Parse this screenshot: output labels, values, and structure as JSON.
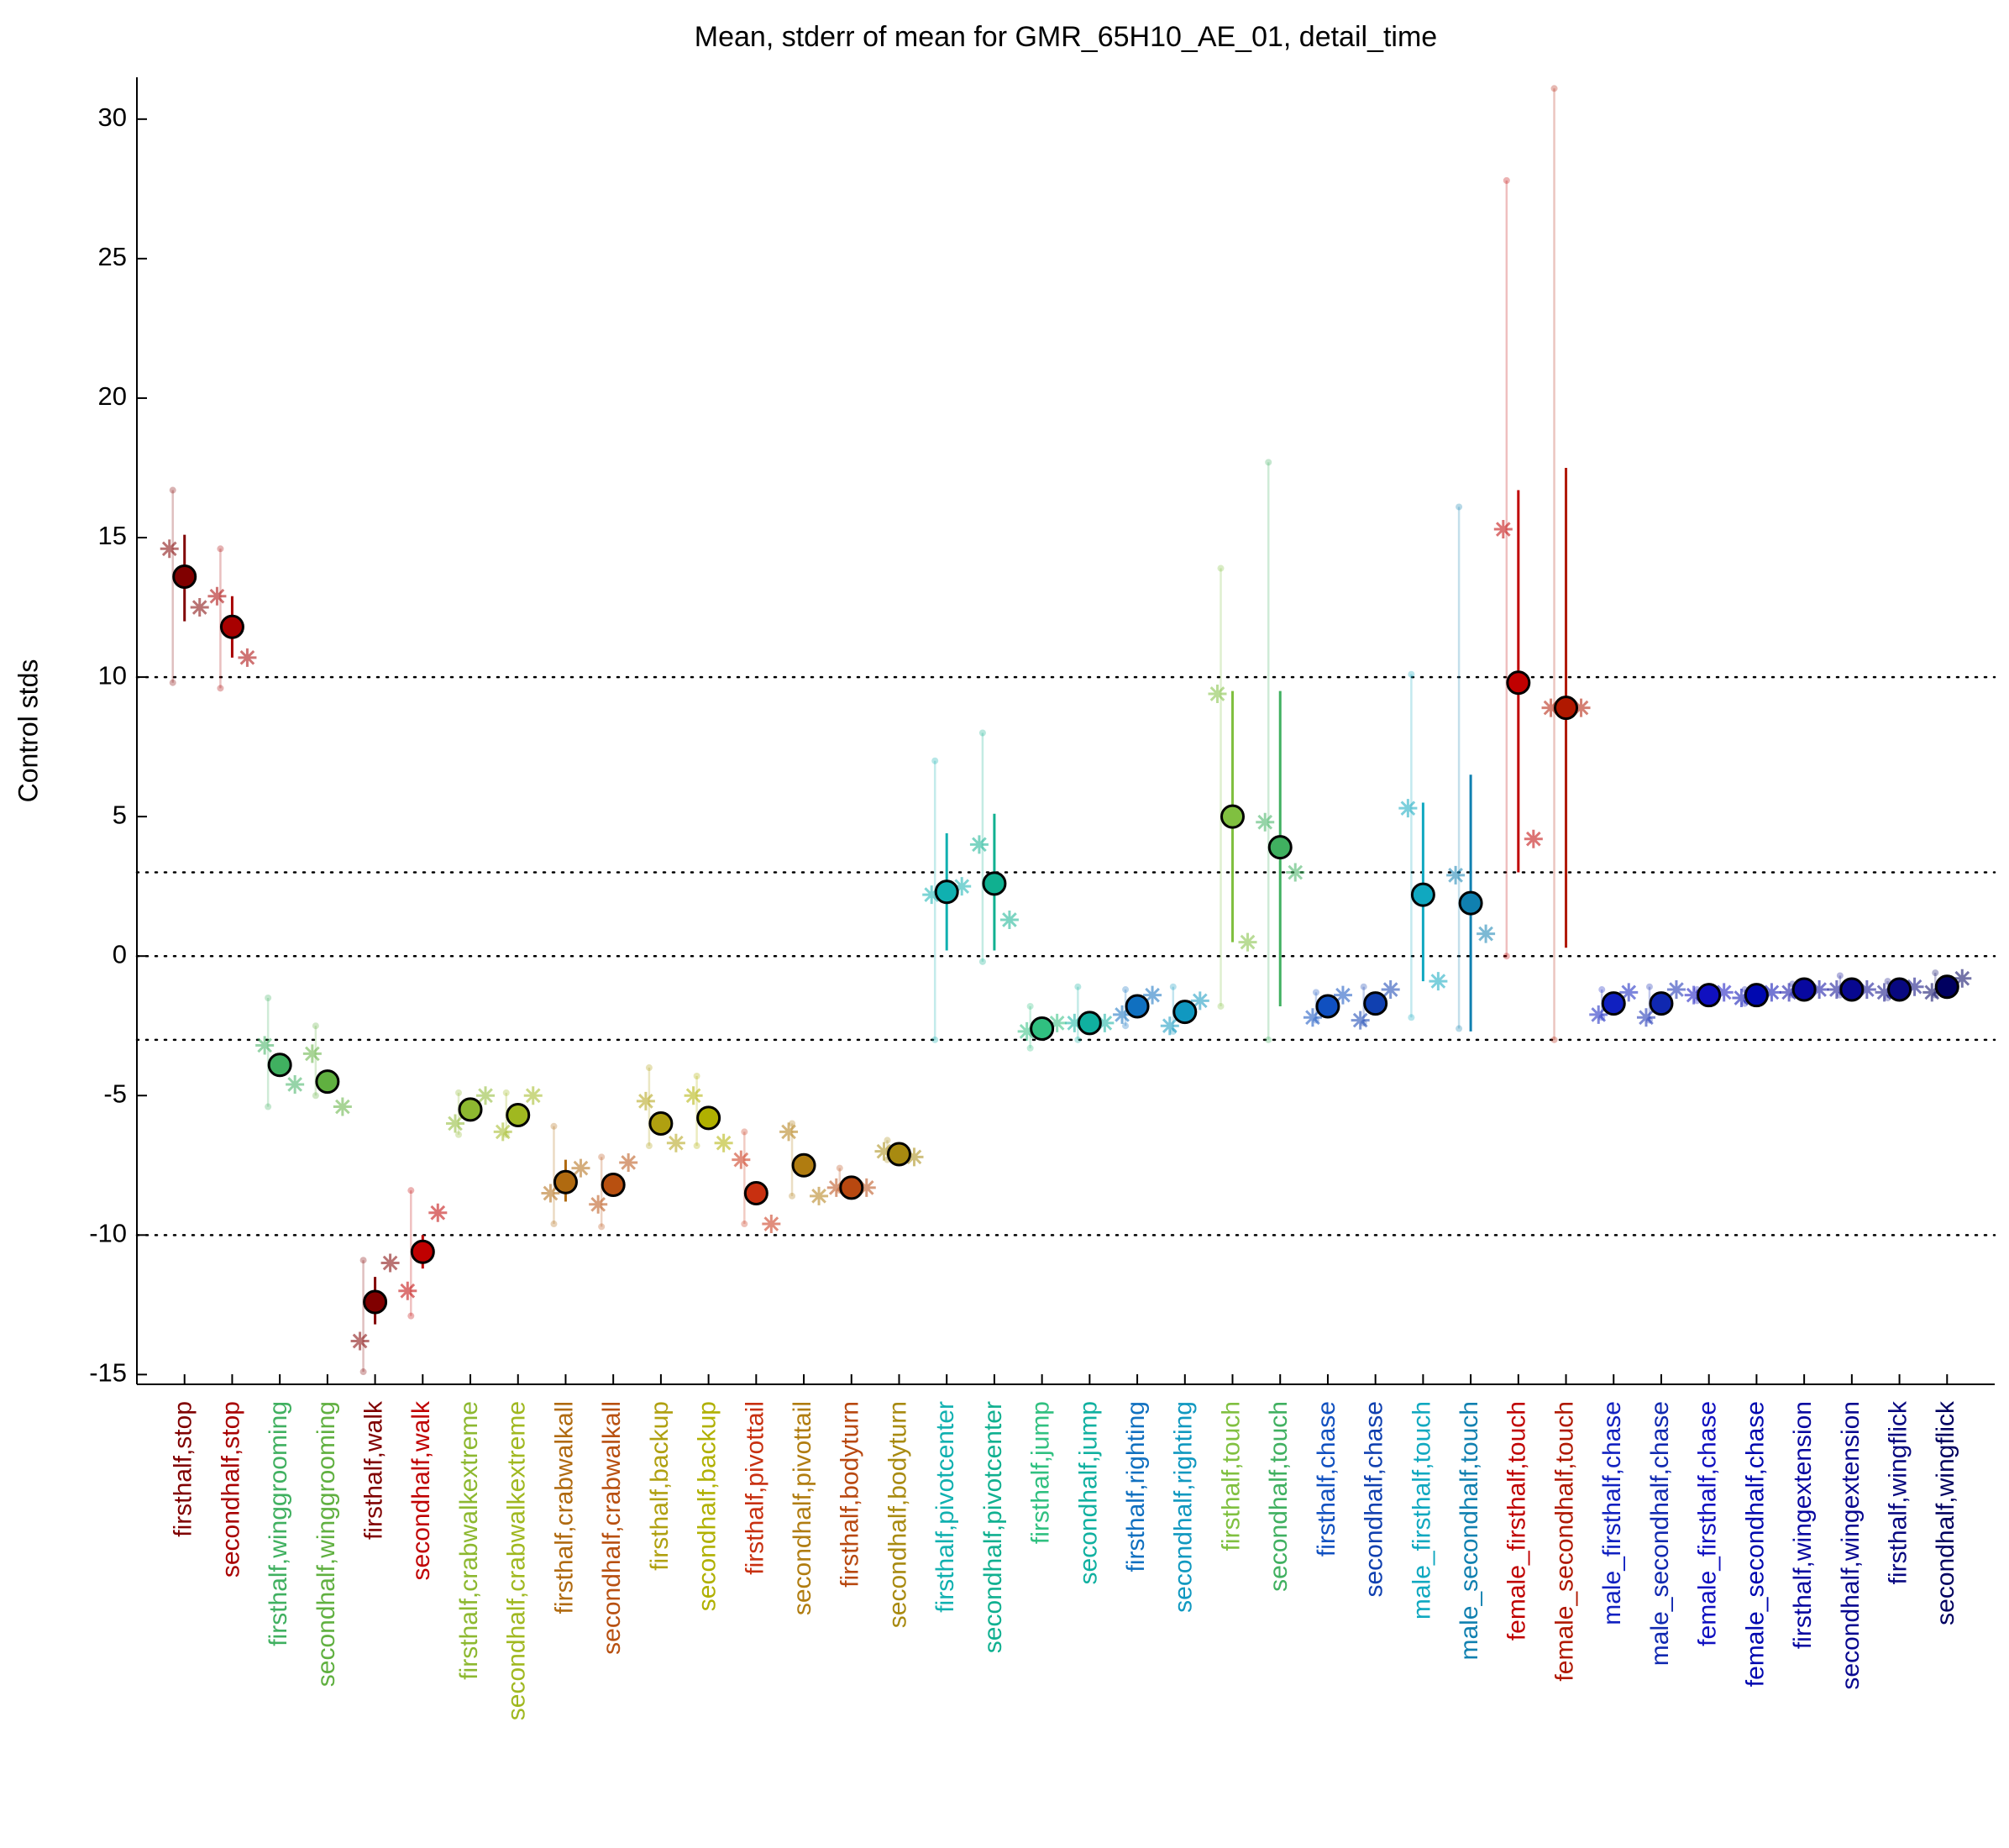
{
  "chart_data": {
    "type": "errorpoint",
    "title": "Mean, stderr of mean for GMR_65H10_AE_01, detail_time",
    "y_label": "Control stds",
    "ylim": [
      -15.35,
      31.5
    ],
    "yticks": [
      -15,
      -10,
      -5,
      0,
      5,
      10,
      15,
      20,
      25,
      30
    ],
    "hlines": [
      10,
      3,
      0,
      -3,
      -10
    ],
    "categories": [
      "firsthalf,stop",
      "secondhalf,stop",
      "firsthalf,winggrooming",
      "secondhalf,winggrooming",
      "firsthalf,walk",
      "secondhalf,walk",
      "firsthalf,crabwalkextreme",
      "secondhalf,crabwalkextreme",
      "firsthalf,crabwalkall",
      "secondhalf,crabwalkall",
      "firsthalf,backup",
      "secondhalf,backup",
      "firsthalf,pivottail",
      "secondhalf,pivottail",
      "firsthalf,bodyturn",
      "secondhalf,bodyturn",
      "firsthalf,pivotcenter",
      "secondhalf,pivotcenter",
      "firsthalf,jump",
      "secondhalf,jump",
      "firsthalf,righting",
      "secondhalf,righting",
      "firsthalf,touch",
      "secondhalf,touch",
      "firsthalf,chase",
      "secondhalf,chase",
      "male_firsthalf,touch",
      "male_secondhalf,touch",
      "female_firsthalf,touch",
      "female_secondhalf,touch",
      "male_firsthalf,chase",
      "male_secondhalf,chase",
      "female_firsthalf,chase",
      "female_secondhalf,chase",
      "firsthalf,wingextension",
      "secondhalf,wingextension",
      "firsthalf,wingflick",
      "secondhalf,wingflick"
    ],
    "colors": [
      "#800000",
      "#a80000",
      "#40b060",
      "#60b040",
      "#800000",
      "#c00000",
      "#8db830",
      "#a0b820",
      "#b06a10",
      "#b85010",
      "#b0a010",
      "#b0b000",
      "#c83010",
      "#b07c10",
      "#b84810",
      "#a88a10",
      "#10b0b0",
      "#10b090",
      "#30c080",
      "#10b0a0",
      "#1070c0",
      "#1098c0",
      "#80c040",
      "#40b060",
      "#1050c0",
      "#1040b0",
      "#10a8c0",
      "#1080b0",
      "#c00000",
      "#b01800",
      "#1020c0",
      "#1028b0",
      "#1010c0",
      "#0008b0",
      "#0808a0",
      "#080890",
      "#080880",
      "#000060"
    ],
    "values": [
      13.6,
      11.8,
      -3.9,
      -4.5,
      -12.4,
      -10.6,
      -5.5,
      -5.7,
      -8.1,
      -8.2,
      -6.0,
      -5.8,
      -8.5,
      -7.5,
      -8.3,
      -7.1,
      2.3,
      2.6,
      -2.6,
      -2.4,
      -1.8,
      -2.0,
      5.0,
      3.9,
      -1.8,
      -1.7,
      2.2,
      1.9,
      9.8,
      8.9,
      -1.7,
      -1.7,
      -1.4,
      -1.4,
      -1.2,
      -1.2,
      -1.2,
      -1.1
    ],
    "error_low": [
      12.0,
      10.7,
      null,
      null,
      -13.2,
      -11.2,
      null,
      null,
      -8.8,
      null,
      null,
      null,
      null,
      null,
      null,
      null,
      0.2,
      0.2,
      null,
      null,
      null,
      null,
      0.5,
      -1.8,
      null,
      null,
      -0.9,
      -2.7,
      3.0,
      0.3,
      null,
      null,
      null,
      null,
      null,
      null,
      null,
      null
    ],
    "error_high": [
      15.1,
      12.9,
      null,
      null,
      -11.5,
      -10.0,
      null,
      null,
      -7.3,
      null,
      null,
      null,
      null,
      null,
      null,
      null,
      4.4,
      5.1,
      null,
      null,
      null,
      null,
      9.5,
      9.5,
      null,
      null,
      5.5,
      6.5,
      16.7,
      17.5,
      null,
      null,
      null,
      null,
      null,
      null,
      null,
      null
    ],
    "left_star": [
      14.6,
      12.9,
      -3.2,
      -3.5,
      -13.8,
      -12.0,
      -6.0,
      -6.3,
      -8.5,
      -8.9,
      -5.2,
      -5.0,
      -7.3,
      -6.3,
      -8.3,
      -7.0,
      2.2,
      4.0,
      -2.7,
      -2.4,
      -2.1,
      -2.5,
      9.4,
      4.8,
      -2.2,
      -2.3,
      5.3,
      2.9,
      15.3,
      8.9,
      -2.1,
      -2.2,
      -1.4,
      -1.5,
      -1.3,
      -1.2,
      -1.3,
      -1.3
    ],
    "right_star": [
      12.5,
      10.7,
      -4.6,
      -5.4,
      -11.0,
      -9.2,
      -5.0,
      -5.0,
      -7.6,
      -7.4,
      -6.7,
      -6.7,
      -9.6,
      -8.6,
      -8.3,
      -7.2,
      2.5,
      1.3,
      -2.4,
      -2.4,
      -1.4,
      -1.6,
      0.5,
      3.0,
      -1.4,
      -1.2,
      -0.9,
      0.8,
      4.2,
      8.9,
      -1.3,
      -1.2,
      -1.3,
      -1.3,
      -1.2,
      -1.2,
      -1.1,
      -0.8
    ],
    "range_low": [
      9.8,
      9.6,
      -5.4,
      -5.0,
      -14.9,
      -12.9,
      -6.4,
      -6.4,
      -9.6,
      -9.7,
      -6.8,
      -6.8,
      -9.6,
      -8.6,
      -8.4,
      -7.3,
      -3.0,
      -0.2,
      -3.3,
      -3.0,
      -2.5,
      -2.7,
      -1.8,
      -3.0,
      -2.3,
      -2.4,
      -2.2,
      -2.6,
      0.0,
      -3.0,
      -2.2,
      -2.3,
      -1.6,
      -1.7,
      -1.4,
      -1.4,
      -1.5,
      -1.4
    ],
    "range_high": [
      16.7,
      14.6,
      -1.5,
      -2.5,
      -10.9,
      -8.4,
      -4.9,
      -4.9,
      -6.1,
      -7.2,
      -4.0,
      -4.3,
      -6.3,
      -6.0,
      -7.6,
      -6.6,
      7.0,
      8.0,
      -1.8,
      -1.1,
      -1.2,
      -1.1,
      13.9,
      17.7,
      -1.3,
      -1.1,
      10.1,
      16.1,
      27.8,
      31.1,
      -1.2,
      -1.1,
      -1.2,
      -1.2,
      -1.0,
      -0.7,
      -0.9,
      -0.6
    ]
  }
}
